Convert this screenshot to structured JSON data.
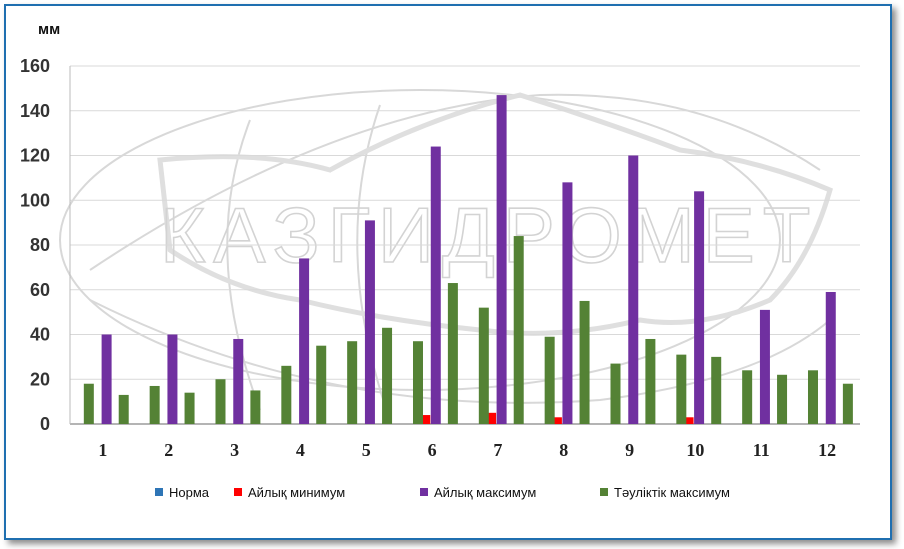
{
  "chart_data": {
    "type": "bar",
    "unit_label": "мм",
    "watermark": "КАЗГИДРОМЕТ",
    "categories": [
      "1",
      "2",
      "3",
      "4",
      "5",
      "6",
      "7",
      "8",
      "9",
      "10",
      "11",
      "12"
    ],
    "ylim": [
      0,
      160
    ],
    "yticks": [
      0,
      20,
      40,
      60,
      80,
      100,
      120,
      140,
      160
    ],
    "grid": true,
    "legend_position": "bottom",
    "series": [
      {
        "name": "Норма",
        "color": "#2e75b6",
        "values": [
          0,
          0,
          0,
          0,
          0,
          0,
          0,
          0,
          0,
          0,
          0,
          0
        ]
      },
      {
        "name": "Айлық минимум",
        "color": "#ff0000",
        "values": [
          0,
          0,
          0,
          0,
          0,
          4,
          5,
          3,
          0,
          3,
          0,
          0
        ]
      },
      {
        "name": "Айлық максимум",
        "color": "#7030a0",
        "values": [
          40,
          40,
          38,
          74,
          91,
          124,
          147,
          108,
          120,
          104,
          51,
          59
        ]
      },
      {
        "name": "Тәуліктік максимум",
        "color": "#548235",
        "values": [
          18,
          17,
          20,
          26,
          37,
          37,
          52,
          39,
          27,
          31,
          24,
          24
        ]
      },
      {
        "name": "",
        "color": "#548235",
        "values": [
          13,
          14,
          15,
          35,
          43,
          63,
          84,
          55,
          38,
          30,
          22,
          18
        ]
      }
    ]
  }
}
